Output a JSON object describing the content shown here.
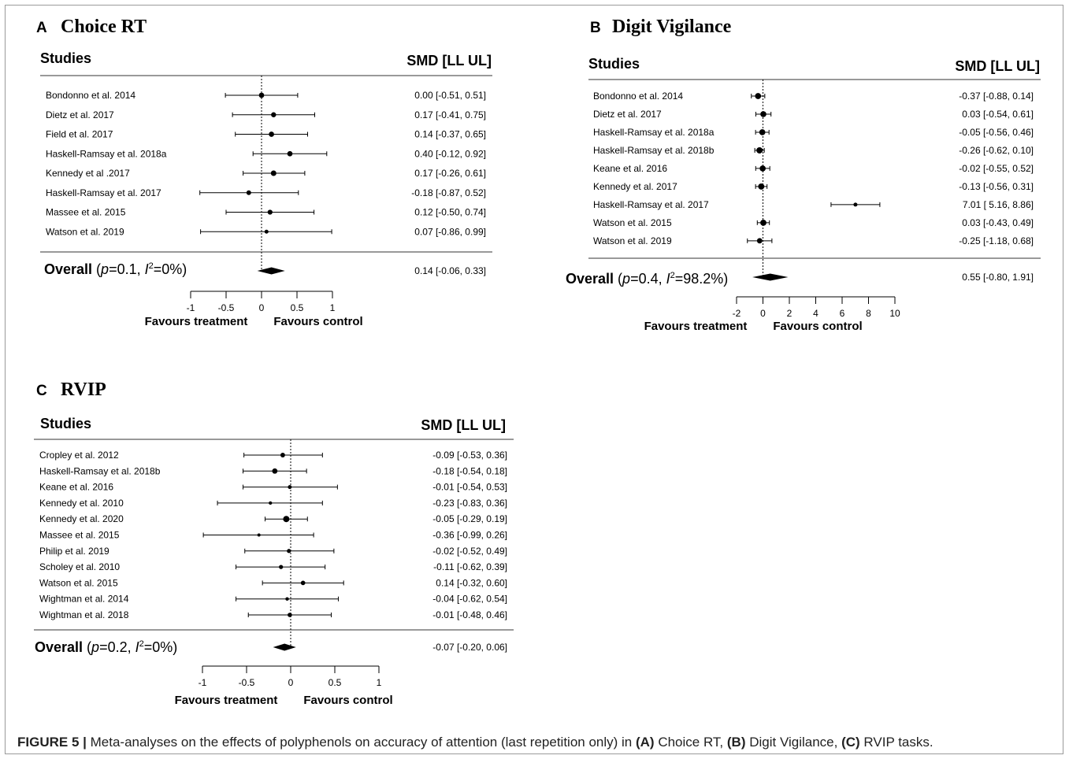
{
  "chart_data": [
    {
      "type": "forest",
      "panel_letter": "A",
      "title": "Choice RT",
      "studies_header": "Studies",
      "effect_header": "SMD [LL UL]",
      "studies": [
        {
          "name": "Bondonno et al. 2014",
          "est": 0.0,
          "ll": -0.51,
          "ul": 0.51,
          "ci_text": "0.00 [-0.51, 0.51]"
        },
        {
          "name": "Dietz et al. 2017",
          "est": 0.17,
          "ll": -0.41,
          "ul": 0.75,
          "ci_text": "0.17 [-0.41, 0.75]"
        },
        {
          "name": "Field et al. 2017",
          "est": 0.14,
          "ll": -0.37,
          "ul": 0.65,
          "ci_text": "0.14 [-0.37, 0.65]"
        },
        {
          "name": "Haskell-Ramsay et al. 2018a",
          "est": 0.4,
          "ll": -0.12,
          "ul": 0.92,
          "ci_text": "0.40 [-0.12, 0.92]"
        },
        {
          "name": "Kennedy et al .2017",
          "est": 0.17,
          "ll": -0.26,
          "ul": 0.61,
          "ci_text": "0.17 [-0.26, 0.61]"
        },
        {
          "name": "Haskell-Ramsay et al. 2017",
          "est": -0.18,
          "ll": -0.87,
          "ul": 0.52,
          "ci_text": "-0.18 [-0.87, 0.52]"
        },
        {
          "name": "Massee et al. 2015",
          "est": 0.12,
          "ll": -0.5,
          "ul": 0.74,
          "ci_text": "0.12 [-0.50, 0.74]"
        },
        {
          "name": "Watson et al. 2019",
          "est": 0.07,
          "ll": -0.86,
          "ul": 0.99,
          "ci_text": "0.07 [-0.86, 0.99]"
        }
      ],
      "overall": {
        "label": "Overall",
        "p": "0.1",
        "i2": "0%",
        "est": 0.14,
        "ll": -0.06,
        "ul": 0.33,
        "ci_text": "0.14 [-0.06, 0.33]"
      },
      "xlim": [
        -1,
        1
      ],
      "ticks": [
        -1,
        -0.5,
        0,
        0.5,
        1
      ],
      "tick_labels": [
        "-1",
        "-0.5",
        "0",
        "0.5",
        "1"
      ],
      "favours_left": "Favours treatment",
      "favours_right": "Favours control"
    },
    {
      "type": "forest",
      "panel_letter": "B",
      "title": "Digit Vigilance",
      "studies_header": "Studies",
      "effect_header": "SMD [LL UL]",
      "studies": [
        {
          "name": "Bondonno et al. 2014",
          "est": -0.37,
          "ll": -0.88,
          "ul": 0.14,
          "ci_text": "-0.37 [-0.88, 0.14]"
        },
        {
          "name": "Dietz et al. 2017",
          "est": 0.03,
          "ll": -0.54,
          "ul": 0.61,
          "ci_text": "0.03 [-0.54, 0.61]"
        },
        {
          "name": "Haskell-Ramsay et al. 2018a",
          "est": -0.05,
          "ll": -0.56,
          "ul": 0.46,
          "ci_text": "-0.05 [-0.56, 0.46]"
        },
        {
          "name": "Haskell-Ramsay et al. 2018b",
          "est": -0.26,
          "ll": -0.62,
          "ul": 0.1,
          "ci_text": "-0.26 [-0.62, 0.10]"
        },
        {
          "name": "Keane et al. 2016",
          "est": -0.02,
          "ll": -0.55,
          "ul": 0.52,
          "ci_text": "-0.02 [-0.55, 0.52]"
        },
        {
          "name": "Kennedy et al. 2017",
          "est": -0.13,
          "ll": -0.56,
          "ul": 0.31,
          "ci_text": "-0.13 [-0.56, 0.31]"
        },
        {
          "name": "Haskell-Ramsay et al. 2017",
          "est": 7.01,
          "ll": 5.16,
          "ul": 8.86,
          "ci_text": "7.01 [ 5.16, 8.86]"
        },
        {
          "name": "Watson et al. 2015",
          "est": 0.03,
          "ll": -0.43,
          "ul": 0.49,
          "ci_text": "0.03 [-0.43, 0.49]"
        },
        {
          "name": "Watson et al. 2019",
          "est": -0.25,
          "ll": -1.18,
          "ul": 0.68,
          "ci_text": "-0.25 [-1.18, 0.68]"
        }
      ],
      "overall": {
        "label": "Overall",
        "p": "0.4",
        "i2": "98.2%",
        "est": 0.55,
        "ll": -0.8,
        "ul": 1.91,
        "ci_text": "0.55 [-0.80, 1.91]"
      },
      "xlim": [
        -2,
        10
      ],
      "ticks": [
        -2,
        0,
        2,
        4,
        6,
        8,
        10
      ],
      "tick_labels": [
        "-2",
        "0",
        "2",
        "4",
        "6",
        "8",
        "10"
      ],
      "favours_left": "Favours treatment",
      "favours_right": "Favours control"
    },
    {
      "type": "forest",
      "panel_letter": "C",
      "title": "RVIP",
      "studies_header": "Studies",
      "effect_header": "SMD [LL UL]",
      "studies": [
        {
          "name": "Cropley et al. 2012",
          "est": -0.09,
          "ll": -0.53,
          "ul": 0.36,
          "ci_text": "-0.09 [-0.53, 0.36]"
        },
        {
          "name": "Haskell-Ramsay et al. 2018b",
          "est": -0.18,
          "ll": -0.54,
          "ul": 0.18,
          "ci_text": "-0.18 [-0.54, 0.18]"
        },
        {
          "name": "Keane et al. 2016",
          "est": -0.01,
          "ll": -0.54,
          "ul": 0.53,
          "ci_text": "-0.01 [-0.54, 0.53]"
        },
        {
          "name": "Kennedy et al. 2010",
          "est": -0.23,
          "ll": -0.83,
          "ul": 0.36,
          "ci_text": "-0.23 [-0.83, 0.36]"
        },
        {
          "name": "Kennedy et al. 2020",
          "est": -0.05,
          "ll": -0.29,
          "ul": 0.19,
          "ci_text": "-0.05 [-0.29, 0.19]"
        },
        {
          "name": "Massee et al. 2015",
          "est": -0.36,
          "ll": -0.99,
          "ul": 0.26,
          "ci_text": "-0.36 [-0.99, 0.26]"
        },
        {
          "name": "Philip et al. 2019",
          "est": -0.02,
          "ll": -0.52,
          "ul": 0.49,
          "ci_text": "-0.02 [-0.52, 0.49]"
        },
        {
          "name": "Scholey et al. 2010",
          "est": -0.11,
          "ll": -0.62,
          "ul": 0.39,
          "ci_text": "-0.11 [-0.62, 0.39]"
        },
        {
          "name": "Watson et al. 2015",
          "est": 0.14,
          "ll": -0.32,
          "ul": 0.6,
          "ci_text": "0.14 [-0.32, 0.60]"
        },
        {
          "name": "Wightman et al. 2014",
          "est": -0.04,
          "ll": -0.62,
          "ul": 0.54,
          "ci_text": "-0.04 [-0.62, 0.54]"
        },
        {
          "name": "Wightman et al. 2018",
          "est": -0.01,
          "ll": -0.48,
          "ul": 0.46,
          "ci_text": "-0.01 [-0.48, 0.46]"
        }
      ],
      "overall": {
        "label": "Overall",
        "p": "0.2",
        "i2": "0%",
        "est": -0.07,
        "ll": -0.2,
        "ul": 0.06,
        "ci_text": "-0.07 [-0.20, 0.06]"
      },
      "xlim": [
        -1,
        1
      ],
      "ticks": [
        -1,
        -0.5,
        0,
        0.5,
        1
      ],
      "tick_labels": [
        "-1",
        "-0.5",
        "0",
        "0.5",
        "1"
      ],
      "favours_left": "Favours treatment",
      "favours_right": "Favours control"
    }
  ],
  "caption": {
    "figure_label": "FIGURE 5 |",
    "text_1": " Meta-analyses on the effects of polyphenols on accuracy of attention (last repetition only) in ",
    "a_label": "(A)",
    "a_text": " Choice RT, ",
    "b_label": "(B)",
    "b_text": " Digit Vigilance, ",
    "c_label": "(C)",
    "c_text": " RVIP tasks."
  },
  "colors": {
    "ink": "#000000",
    "frame": "#9a9a9a",
    "caption": "#222222"
  }
}
